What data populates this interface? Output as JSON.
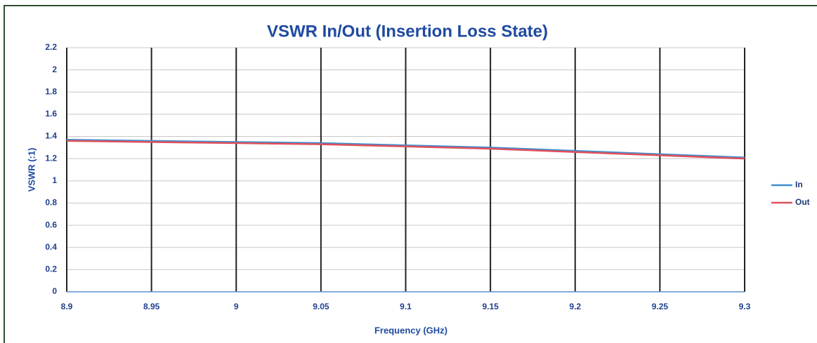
{
  "chart_data": {
    "type": "line",
    "title": "VSWR In/Out (Insertion Loss State)",
    "x_label": "Frequency (GHz)",
    "y_label": "VSWR (:1)",
    "x": [
      8.9,
      8.95,
      9,
      9.05,
      9.1,
      9.15,
      9.2,
      9.25,
      9.3
    ],
    "series": [
      {
        "name": "In",
        "color": "#3f8fd0",
        "values": [
          1.37,
          1.36,
          1.35,
          1.34,
          1.32,
          1.3,
          1.27,
          1.24,
          1.21
        ]
      },
      {
        "name": "Out",
        "color": "#e0505a",
        "values": [
          1.36,
          1.35,
          1.34,
          1.33,
          1.31,
          1.29,
          1.26,
          1.23,
          1.2
        ]
      }
    ],
    "xlim": [
      8.9,
      9.3
    ],
    "xticks": [
      8.9,
      8.95,
      9,
      9.05,
      9.1,
      9.15,
      9.2,
      9.25,
      9.3
    ],
    "ylim": [
      0,
      2.2
    ],
    "yticks": [
      0,
      0.2,
      0.4,
      0.6,
      0.8,
      1,
      1.2,
      1.4,
      1.6,
      1.8,
      2,
      2.2
    ],
    "grid": true,
    "legend": "right"
  }
}
